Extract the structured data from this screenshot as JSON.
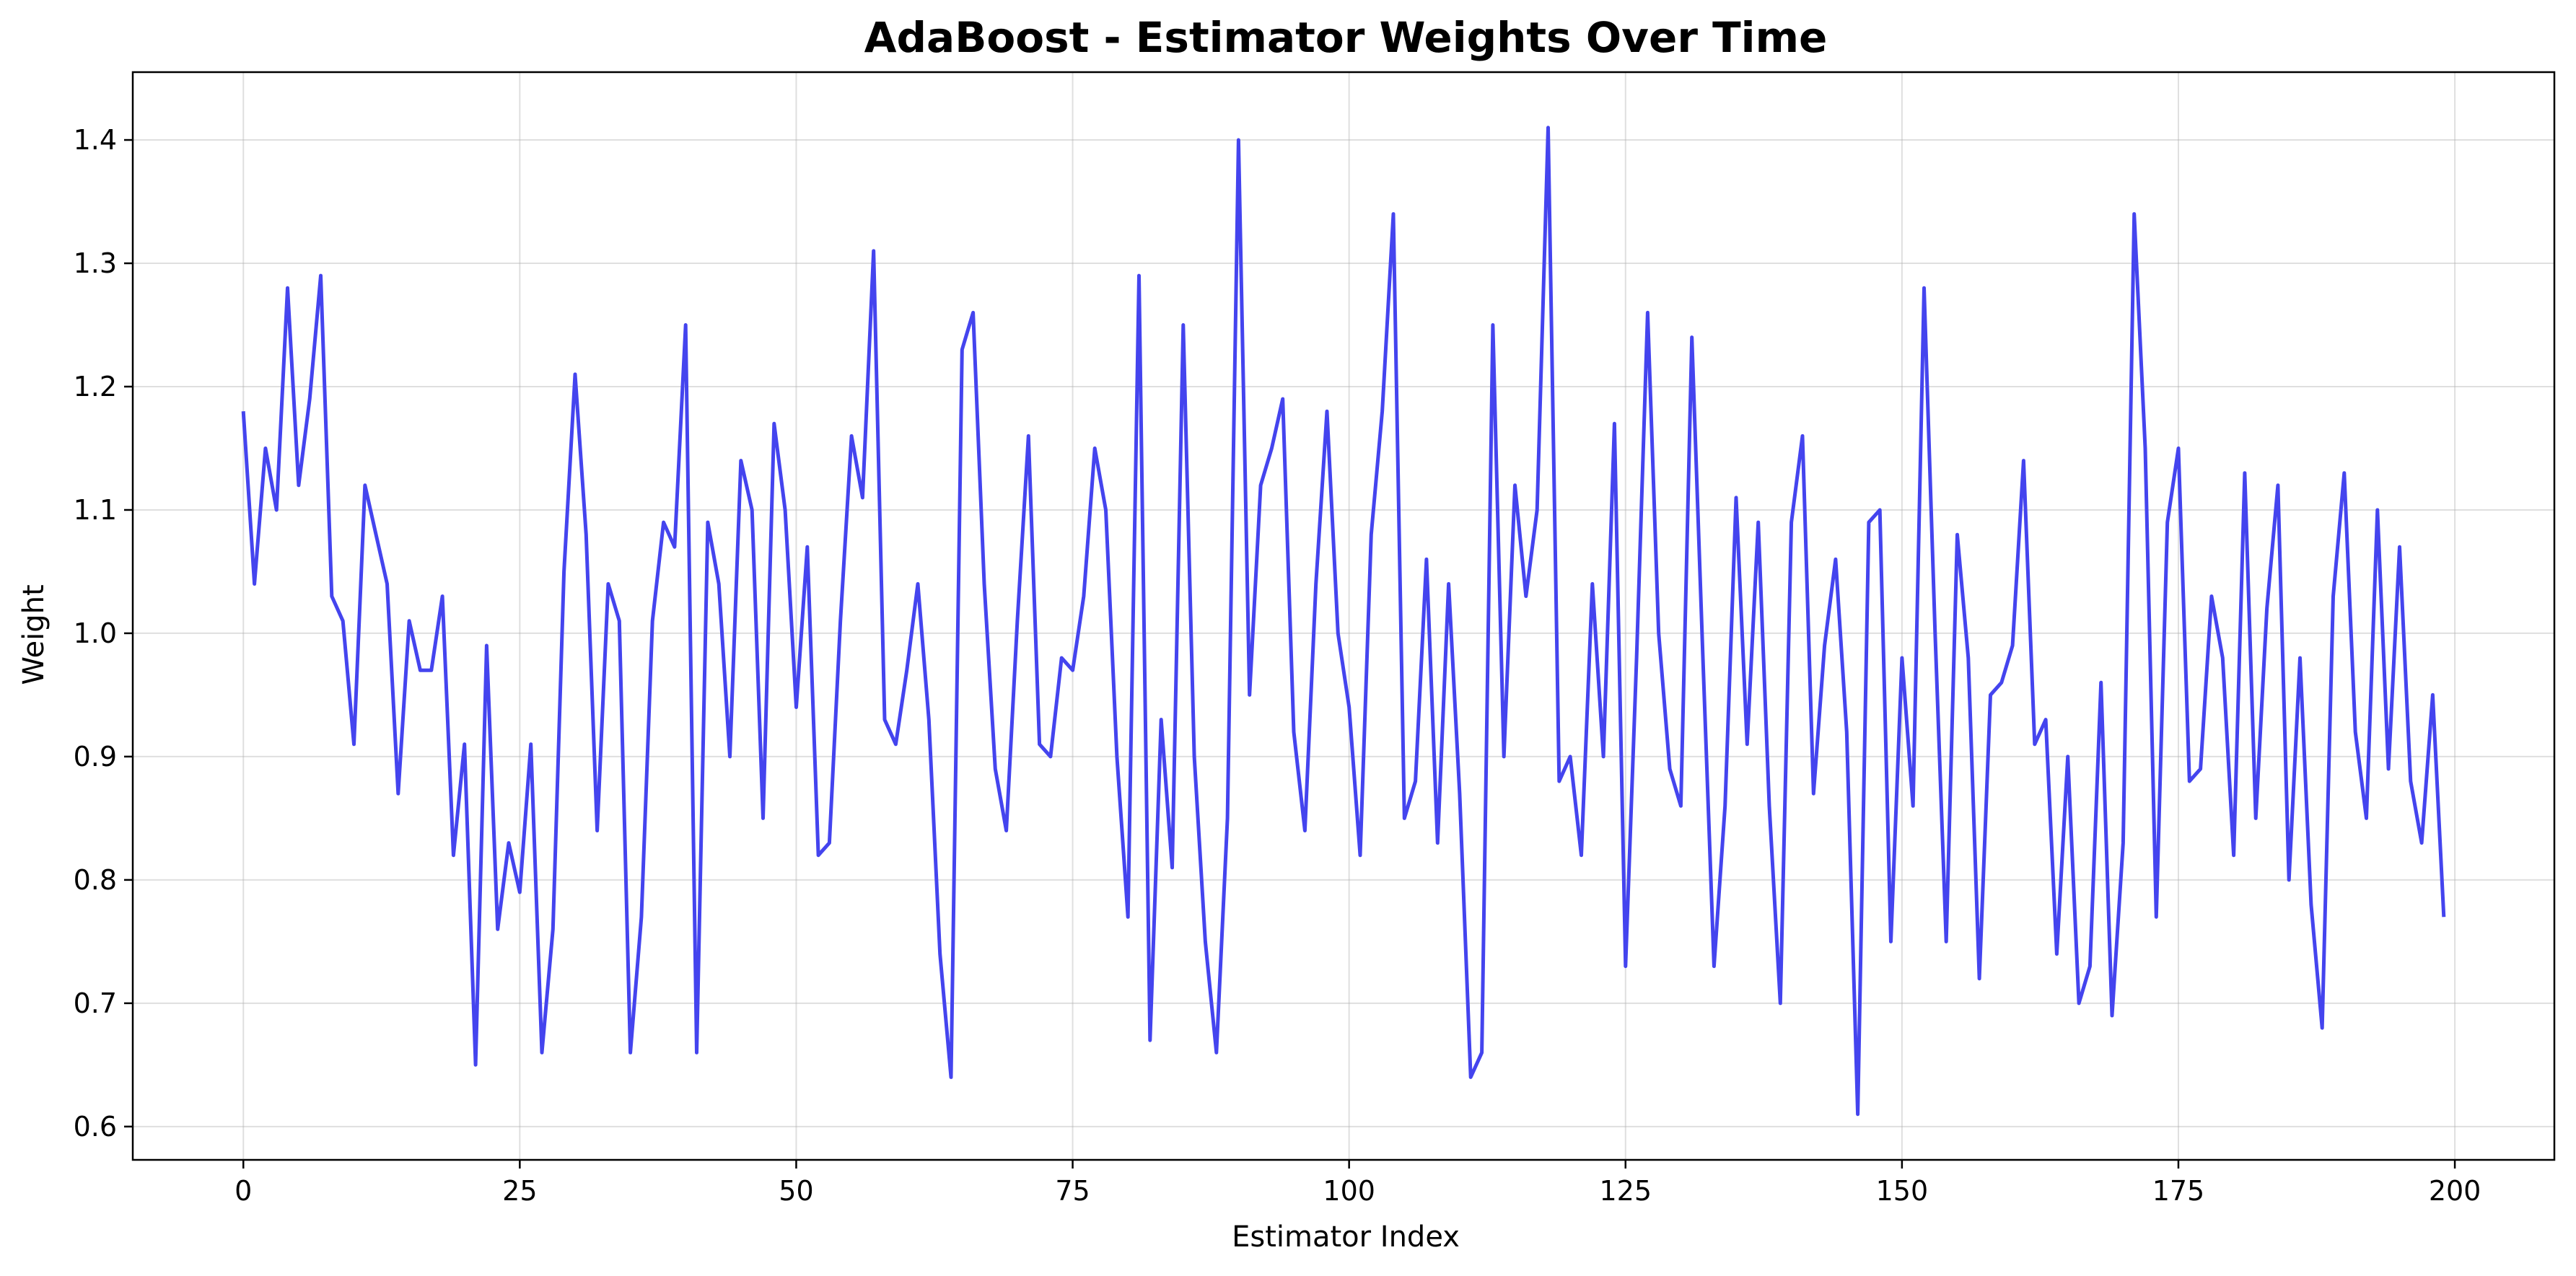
{
  "chart_data": {
    "type": "line",
    "title": "AdaBoost - Estimator Weights Over Time",
    "xlabel": "Estimator Index",
    "ylabel": "Weight",
    "xlim": [
      -10,
      209
    ],
    "ylim": [
      0.573,
      1.455
    ],
    "xticks": [
      0,
      25,
      50,
      75,
      100,
      125,
      150,
      175,
      200
    ],
    "yticks": [
      0.6,
      0.7,
      0.8,
      0.9,
      1.0,
      1.1,
      1.2,
      1.3,
      1.4
    ],
    "xtick_labels": [
      "0",
      "25",
      "50",
      "75",
      "100",
      "125",
      "150",
      "175",
      "200"
    ],
    "ytick_labels": [
      "0.6",
      "0.7",
      "0.8",
      "0.9",
      "1.0",
      "1.1",
      "1.2",
      "1.3",
      "1.4"
    ],
    "grid": true,
    "series": [
      {
        "color": "#4444ee",
        "x_start": 0,
        "x_step": 1,
        "values": [
          1.18,
          1.04,
          1.15,
          1.1,
          1.28,
          1.12,
          1.19,
          1.29,
          1.03,
          1.01,
          0.91,
          1.12,
          1.08,
          1.04,
          0.87,
          1.01,
          0.97,
          0.97,
          1.03,
          0.82,
          0.91,
          0.65,
          0.99,
          0.76,
          0.83,
          0.79,
          0.91,
          0.66,
          0.76,
          1.05,
          1.21,
          1.08,
          0.84,
          1.04,
          1.01,
          0.66,
          0.77,
          1.01,
          1.09,
          1.07,
          1.25,
          0.66,
          1.09,
          1.04,
          0.9,
          1.14,
          1.1,
          0.85,
          1.17,
          1.1,
          0.94,
          1.07,
          0.82,
          0.83,
          1.01,
          1.16,
          1.11,
          1.31,
          0.93,
          0.91,
          0.97,
          1.04,
          0.93,
          0.74,
          0.64,
          1.23,
          1.26,
          1.04,
          0.89,
          0.84,
          1.01,
          1.16,
          0.91,
          0.9,
          0.98,
          0.97,
          1.03,
          1.15,
          1.1,
          0.9,
          0.77,
          1.29,
          0.67,
          0.93,
          0.81,
          1.25,
          0.9,
          0.75,
          0.66,
          0.85,
          1.4,
          0.95,
          1.12,
          1.15,
          1.19,
          0.92,
          0.84,
          1.04,
          1.18,
          1.0,
          0.94,
          0.82,
          1.08,
          1.18,
          1.34,
          0.85,
          0.88,
          1.06,
          0.83,
          1.04,
          0.87,
          0.64,
          0.66,
          1.25,
          0.9,
          1.12,
          1.03,
          1.1,
          1.41,
          0.88,
          0.9,
          0.82,
          1.04,
          0.9,
          1.17,
          0.73,
          0.98,
          1.26,
          1.0,
          0.89,
          0.86,
          1.24,
          0.98,
          0.73,
          0.86,
          1.11,
          0.91,
          1.09,
          0.86,
          0.7,
          1.09,
          1.16,
          0.87,
          0.99,
          1.06,
          0.92,
          0.61,
          1.09,
          1.1,
          0.75,
          0.98,
          0.86,
          1.28,
          1.0,
          0.75,
          1.08,
          0.98,
          0.72,
          0.95,
          0.96,
          0.99,
          1.14,
          0.91,
          0.93,
          0.74,
          0.9,
          0.7,
          0.73,
          0.96,
          0.69,
          0.83,
          1.34,
          1.15,
          0.77,
          1.09,
          1.15,
          0.88,
          0.89,
          1.03,
          0.98,
          0.82,
          1.13,
          0.85,
          1.02,
          1.12,
          0.8,
          0.98,
          0.78,
          0.68,
          1.03,
          1.13,
          0.92,
          0.85,
          1.1,
          0.89,
          1.07,
          0.88,
          0.83,
          0.95,
          0.77
        ]
      }
    ]
  }
}
